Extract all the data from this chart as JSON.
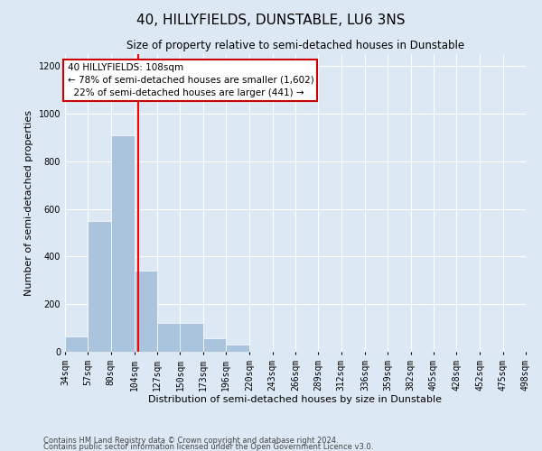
{
  "title": "40, HILLYFIELDS, DUNSTABLE, LU6 3NS",
  "subtitle": "Size of property relative to semi-detached houses in Dunstable",
  "xlabel": "Distribution of semi-detached houses by size in Dunstable",
  "ylabel": "Number of semi-detached properties",
  "bins": [
    "34sqm",
    "57sqm",
    "80sqm",
    "104sqm",
    "127sqm",
    "150sqm",
    "173sqm",
    "196sqm",
    "220sqm",
    "243sqm",
    "266sqm",
    "289sqm",
    "312sqm",
    "336sqm",
    "359sqm",
    "382sqm",
    "405sqm",
    "428sqm",
    "452sqm",
    "475sqm",
    "498sqm"
  ],
  "bin_edges": [
    34,
    57,
    80,
    104,
    127,
    150,
    173,
    196,
    220,
    243,
    266,
    289,
    312,
    336,
    359,
    382,
    405,
    428,
    452,
    475,
    498
  ],
  "values": [
    65,
    550,
    910,
    340,
    120,
    120,
    55,
    30,
    0,
    0,
    0,
    0,
    0,
    0,
    0,
    0,
    0,
    0,
    0,
    0
  ],
  "bar_color": "#aac4dd",
  "bar_edge_color": "#ffffff",
  "grid_color": "#ffffff",
  "bg_color": "#dce9f5",
  "property_line_x": 108,
  "property_sqm": "108sqm",
  "property_name": "40 HILLYFIELDS",
  "pct_smaller": 78,
  "n_smaller": 1602,
  "pct_larger": 22,
  "n_larger": 441,
  "annotation_box_color": "#ffffff",
  "annotation_box_edge": "#cc0000",
  "annotation_text_color": "#000000",
  "ylim": [
    0,
    1250
  ],
  "yticks": [
    0,
    200,
    400,
    600,
    800,
    1000,
    1200
  ],
  "footer1": "Contains HM Land Registry data © Crown copyright and database right 2024.",
  "footer2": "Contains public sector information licensed under the Open Government Licence v3.0.",
  "title_fontsize": 11,
  "subtitle_fontsize": 8.5,
  "tick_fontsize": 7,
  "ylabel_fontsize": 8,
  "xlabel_fontsize": 8,
  "annotation_fontsize": 7.5
}
